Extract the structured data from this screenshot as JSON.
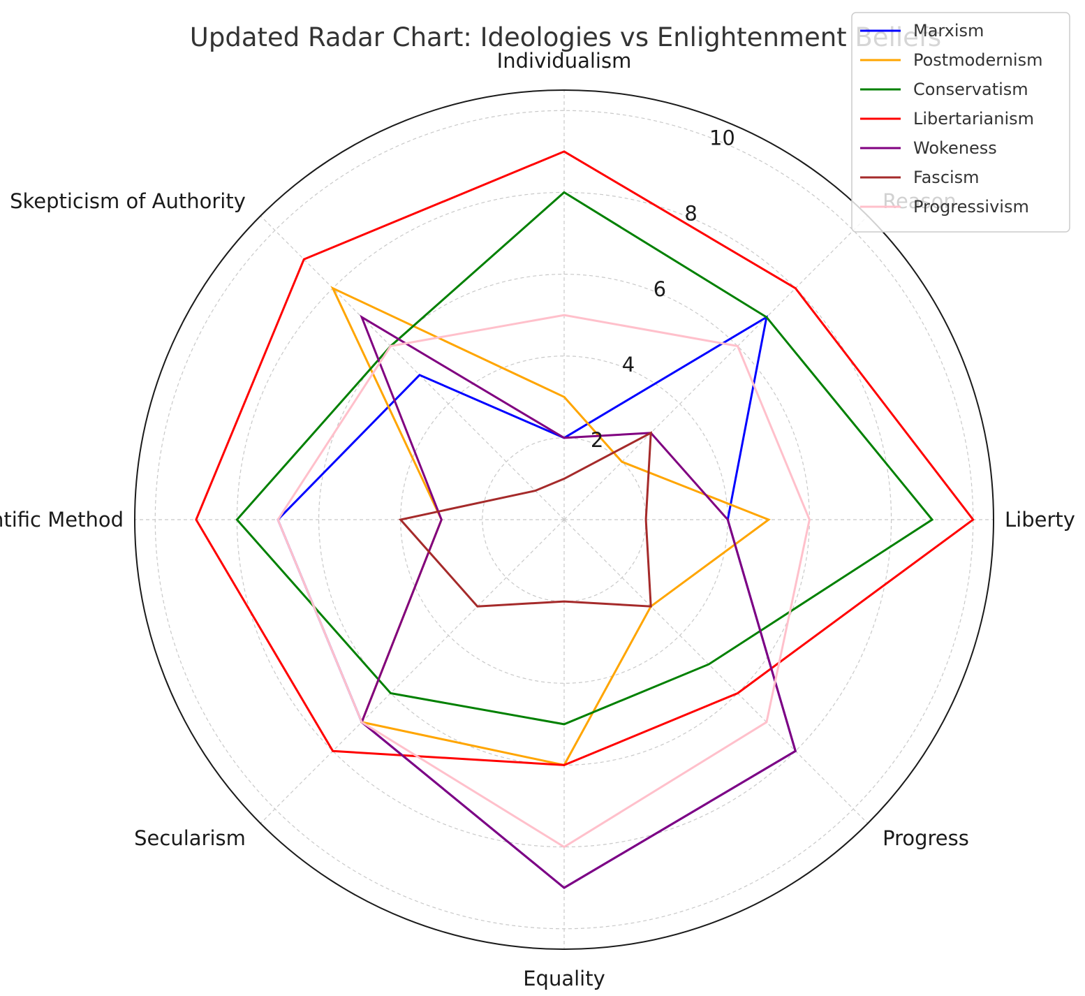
{
  "chart_data": {
    "type": "radar",
    "title": "Updated Radar Chart: Ideologies vs Enlightenment Beliefs",
    "categories": [
      "Individualism",
      "Reason",
      "Liberty",
      "Progress",
      "Equality",
      "Secularism",
      "Scientific Method",
      "Skepticism of Authority"
    ],
    "rlim": [
      0,
      10.5
    ],
    "rticks": [
      2,
      4,
      6,
      8,
      10
    ],
    "grid": true,
    "legend_position": "top-right",
    "series": [
      {
        "name": "Marxism",
        "color": "#0000ff",
        "values": [
          2,
          7,
          4,
          8,
          9,
          7,
          7,
          5
        ]
      },
      {
        "name": "Postmodernism",
        "color": "#ffa500",
        "values": [
          3,
          2,
          5,
          3,
          6,
          7,
          3,
          8
        ]
      },
      {
        "name": "Conservatism",
        "color": "#008000",
        "values": [
          8,
          7,
          9,
          5,
          5,
          6,
          8,
          6
        ]
      },
      {
        "name": "Libertarianism",
        "color": "#ff0000",
        "values": [
          9,
          8,
          10,
          6,
          6,
          8,
          9,
          9
        ]
      },
      {
        "name": "Wokeness",
        "color": "#800080",
        "values": [
          2,
          3,
          4,
          8,
          9,
          7,
          3,
          7
        ]
      },
      {
        "name": "Fascism",
        "color": "#a52a2a",
        "values": [
          1,
          3,
          2,
          3,
          2,
          3,
          4,
          1
        ]
      },
      {
        "name": "Progressivism",
        "color": "#ffc0cb",
        "values": [
          5,
          6,
          6,
          7,
          8,
          7,
          7,
          6
        ]
      }
    ]
  }
}
